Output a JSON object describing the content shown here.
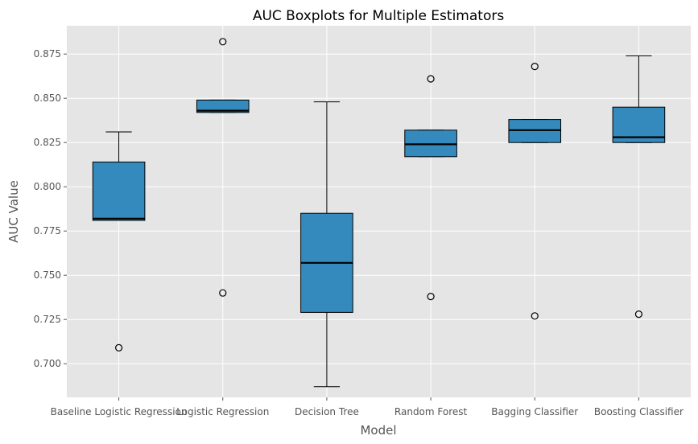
{
  "chart_data": {
    "type": "boxplot",
    "title": "AUC Boxplots for Multiple Estimators",
    "xlabel": "Model",
    "ylabel": "AUC Value",
    "ylim": [
      0.681,
      0.891
    ],
    "yticks": [
      0.7,
      0.725,
      0.75,
      0.775,
      0.8,
      0.825,
      0.85,
      0.875
    ],
    "ytick_labels": [
      "0.700",
      "0.725",
      "0.750",
      "0.775",
      "0.800",
      "0.825",
      "0.850",
      "0.875"
    ],
    "grid": true,
    "categories": [
      "Baseline Logistic Regression",
      "Logistic Regression",
      "Decision Tree",
      "Random Forest",
      "Bagging Classifier",
      "Boosting Classifier"
    ],
    "boxes": [
      {
        "label": "Baseline Logistic Regression",
        "whisker_low": 0.781,
        "q1": 0.781,
        "median": 0.782,
        "q3": 0.814,
        "whisker_high": 0.831,
        "outliers": [
          0.709
        ]
      },
      {
        "label": "Logistic Regression",
        "whisker_low": 0.842,
        "q1": 0.842,
        "median": 0.843,
        "q3": 0.849,
        "whisker_high": 0.849,
        "outliers": [
          0.882,
          0.74
        ]
      },
      {
        "label": "Decision Tree",
        "whisker_low": 0.687,
        "q1": 0.729,
        "median": 0.757,
        "q3": 0.785,
        "whisker_high": 0.848,
        "outliers": []
      },
      {
        "label": "Random Forest",
        "whisker_low": 0.817,
        "q1": 0.817,
        "median": 0.824,
        "q3": 0.832,
        "whisker_high": 0.832,
        "outliers": [
          0.861,
          0.738
        ]
      },
      {
        "label": "Bagging Classifier",
        "whisker_low": 0.825,
        "q1": 0.825,
        "median": 0.832,
        "q3": 0.838,
        "whisker_high": 0.838,
        "outliers": [
          0.868,
          0.727
        ]
      },
      {
        "label": "Boosting Classifier",
        "whisker_low": 0.825,
        "q1": 0.825,
        "median": 0.828,
        "q3": 0.845,
        "whisker_high": 0.874,
        "outliers": [
          0.728
        ]
      }
    ],
    "colors": {
      "background": "#e5e5e5",
      "grid": "#ffffff",
      "box_fill": "#348abd",
      "box_edge": "#000000",
      "text": "#555555",
      "title": "#000000"
    }
  }
}
